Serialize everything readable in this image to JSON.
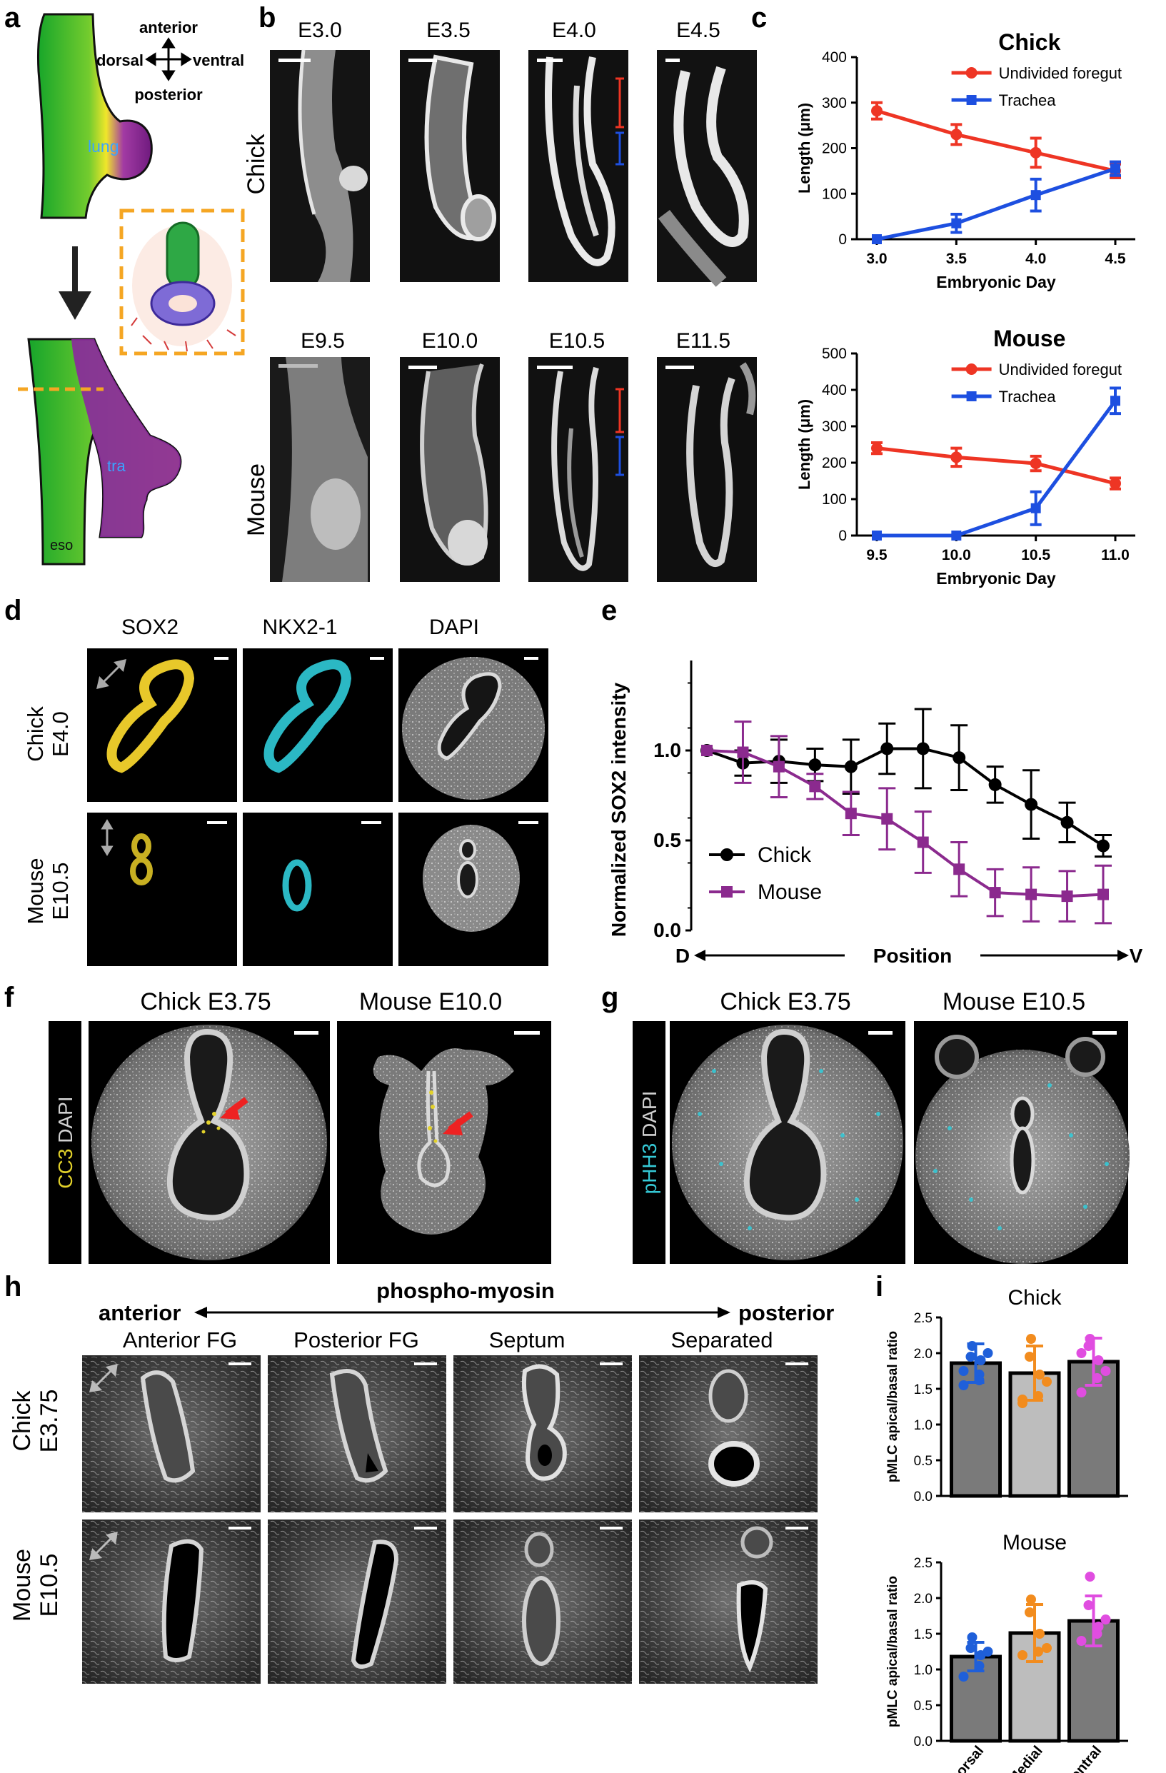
{
  "panel_letters": [
    "a",
    "b",
    "c",
    "d",
    "e",
    "f",
    "g",
    "h",
    "i"
  ],
  "panel_a": {
    "axes": {
      "anterior": "anterior",
      "posterior": "posterior",
      "dorsal": "dorsal",
      "ventral": "ventral"
    },
    "labels": {
      "lung": "lung",
      "tra": "tra",
      "eso": "eso"
    }
  },
  "panel_b": {
    "rows": [
      "Chick",
      "Mouse"
    ],
    "chick_stages": [
      "E3.0",
      "E3.5",
      "E4.0",
      "E4.5"
    ],
    "mouse_stages": [
      "E9.5",
      "E10.0",
      "E10.5",
      "E11.5"
    ]
  },
  "panel_d": {
    "columns": [
      "SOX2",
      "NKX2-1",
      "DAPI"
    ],
    "rows": [
      [
        "Chick",
        "E4.0"
      ],
      [
        "Mouse",
        "E10.5"
      ]
    ]
  },
  "panel_f": {
    "side_label_parts": [
      "CC3",
      " DAPI"
    ],
    "titles": [
      "Chick E3.75",
      "Mouse E10.0"
    ]
  },
  "panel_g": {
    "side_label_parts": [
      "pHH3",
      " DAPI"
    ],
    "titles": [
      "Chick E3.75",
      "Mouse E10.5"
    ]
  },
  "panel_h": {
    "header": "phospho-myosin",
    "left_end": "anterior",
    "right_end": "posterior",
    "columns": [
      "Anterior FG",
      "Posterior FG",
      "Septum",
      "Separated"
    ],
    "rows": [
      [
        "Chick",
        "E3.75"
      ],
      [
        "Mouse",
        "E10.5"
      ]
    ]
  },
  "colors": {
    "chick_line": "#ee3524",
    "trachea_line": "#1d4fe0",
    "chick_e": "#000000",
    "mouse_e": "#8b2a8e",
    "dorsal": "#1f5fd9",
    "medial": "#f28c1e",
    "ventral": "#e04de0",
    "bar": "#7a7a7a",
    "bar_light": "#bdbdbd"
  },
  "chart_data": [
    {
      "panel": "c-top",
      "type": "line",
      "title": "Chick",
      "xlabel": "Embryonic Day",
      "ylabel": "Length (μm)",
      "x": [
        3.0,
        3.5,
        4.0,
        4.5
      ],
      "xticks": [
        "3.0",
        "3.5",
        "4.0",
        "4.5"
      ],
      "yticks": [
        "0",
        "100",
        "200",
        "300",
        "400"
      ],
      "ylim": [
        0,
        400
      ],
      "legend": "top-right",
      "series": [
        {
          "name": "Undivided foregut",
          "values": [
            282,
            230,
            190,
            150
          ],
          "err": [
            18,
            22,
            32,
            15
          ]
        },
        {
          "name": "Trachea",
          "values": [
            0,
            35,
            97,
            155
          ],
          "err": [
            0,
            20,
            35,
            15
          ]
        }
      ]
    },
    {
      "panel": "c-bottom",
      "type": "line",
      "title": "Mouse",
      "xlabel": "Embryonic Day",
      "ylabel": "Length (μm)",
      "x": [
        9.5,
        10.0,
        10.5,
        11.0
      ],
      "xticks": [
        "9.5",
        "10.0",
        "10.5",
        "11.0"
      ],
      "yticks": [
        "0",
        "100",
        "200",
        "300",
        "400",
        "500"
      ],
      "ylim": [
        0,
        500
      ],
      "legend": "top-right",
      "series": [
        {
          "name": "Undivided foregut",
          "values": [
            240,
            215,
            198,
            143
          ],
          "err": [
            15,
            25,
            20,
            15
          ]
        },
        {
          "name": "Trachea",
          "values": [
            0,
            0,
            75,
            370
          ],
          "err": [
            0,
            0,
            45,
            35
          ]
        }
      ]
    },
    {
      "panel": "e",
      "type": "line",
      "xlabel": "Position",
      "x_left": "D",
      "x_right": "V",
      "ylabel": "Normalized SOX2 intensity",
      "yticks": [
        "0.0",
        "0.5",
        "1.0"
      ],
      "ylim": [
        0,
        1.5
      ],
      "legend": "bottom-left",
      "series": [
        {
          "name": "Chick",
          "values": [
            1.0,
            0.93,
            0.94,
            0.92,
            0.91,
            1.01,
            1.01,
            0.96,
            0.81,
            0.7,
            0.6,
            0.47
          ],
          "err": [
            0,
            0.07,
            0.12,
            0.09,
            0.15,
            0.14,
            0.22,
            0.18,
            0.1,
            0.19,
            0.11,
            0.06
          ]
        },
        {
          "name": "Mouse",
          "values": [
            1.0,
            0.99,
            0.91,
            0.8,
            0.65,
            0.62,
            0.49,
            0.34,
            0.21,
            0.2,
            0.19,
            0.2
          ],
          "err": [
            0,
            0.17,
            0.17,
            0.07,
            0.12,
            0.17,
            0.17,
            0.15,
            0.13,
            0.15,
            0.14,
            0.16
          ]
        }
      ]
    },
    {
      "panel": "i-top",
      "type": "bar",
      "title": "Chick",
      "ylabel": "pMLC apical/basal ratio",
      "categories": [
        "Dorsal",
        "Medial",
        "Ventral"
      ],
      "yticks": [
        "0.0",
        "0.5",
        "1.0",
        "1.5",
        "2.0",
        "2.5"
      ],
      "ylim": [
        0,
        2.5
      ],
      "values": [
        1.86,
        1.72,
        1.88
      ],
      "err": [
        0.27,
        0.38,
        0.33
      ],
      "points": [
        [
          1.55,
          1.7,
          1.9,
          1.95,
          2.1,
          2.0,
          1.75,
          1.62
        ],
        [
          1.3,
          1.4,
          1.7,
          1.95,
          2.2,
          1.6,
          1.35
        ],
        [
          1.45,
          1.65,
          1.9,
          2.1,
          2.2,
          1.75,
          2.0
        ]
      ]
    },
    {
      "panel": "i-bottom",
      "type": "bar",
      "title": "Mouse",
      "ylabel": "pMLC apical/basal ratio",
      "categories": [
        "Dorsal",
        "Medial",
        "Ventral"
      ],
      "yticks": [
        "0.0",
        "0.5",
        "1.0",
        "1.5",
        "2.0",
        "2.5"
      ],
      "ylim": [
        0,
        2.5
      ],
      "values": [
        1.18,
        1.51,
        1.68
      ],
      "err": [
        0.2,
        0.4,
        0.35
      ],
      "points": [
        [
          0.9,
          1.05,
          1.2,
          1.3,
          1.45,
          1.25
        ],
        [
          1.2,
          1.25,
          1.5,
          1.8,
          1.98,
          1.3
        ],
        [
          1.4,
          1.5,
          1.6,
          1.9,
          2.3,
          1.7
        ]
      ]
    }
  ]
}
